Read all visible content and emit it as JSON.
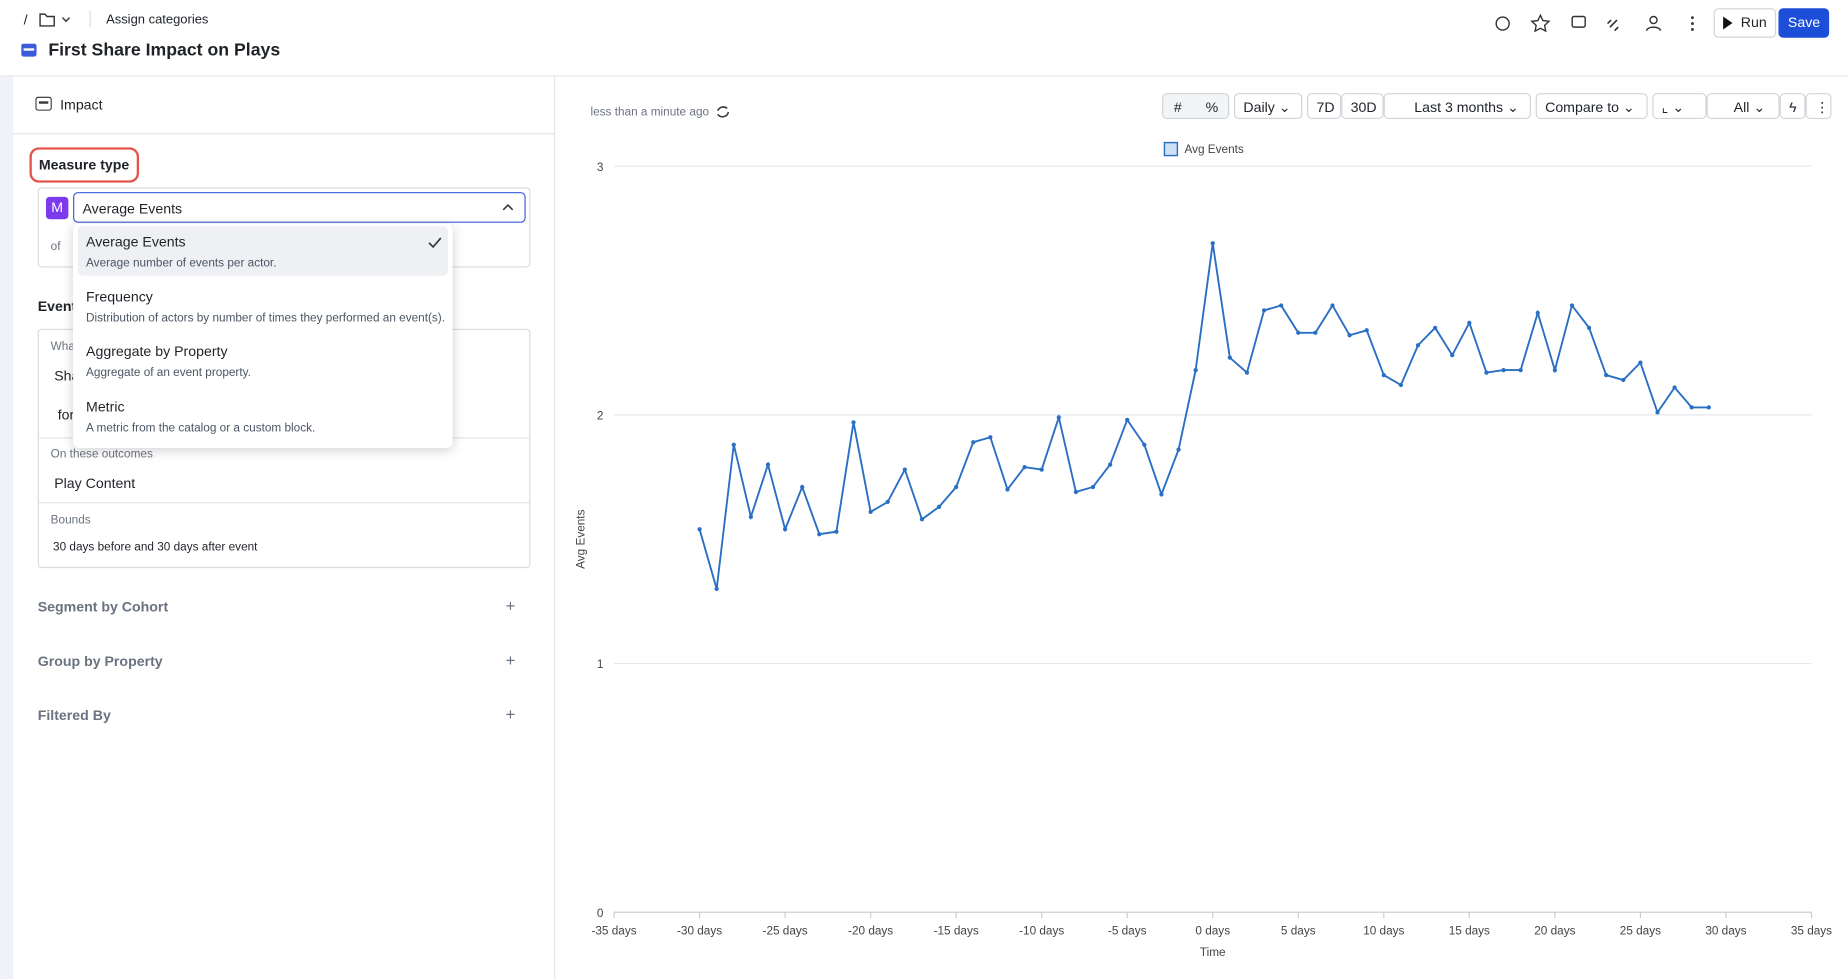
{
  "header": {
    "separator": "/",
    "breadcrumb": "Assign categories",
    "title": "First Share Impact on Plays",
    "run": "Run",
    "save": "Save"
  },
  "sidebar": {
    "section": "Impact",
    "measure_label": "Measure type",
    "badge": "M",
    "measure_value": "Average Events",
    "of": "of",
    "options": [
      {
        "title": "Average Events",
        "desc": "Average number of events per actor."
      },
      {
        "title": "Frequency",
        "desc": "Distribution of actors by number of times they performed an event(s)."
      },
      {
        "title": "Aggregate by Property",
        "desc": "Aggregate of an event property."
      },
      {
        "title": "Metric",
        "desc": "A metric from the catalog or a custom block."
      }
    ],
    "events_label": "Events",
    "what": "Wha",
    "share": "Sha",
    "for": "for",
    "outcomes_label": "On these outcomes",
    "outcome": "Play Content",
    "bounds_label": "Bounds",
    "bounds": "30 days before and 30 days after event",
    "segment": "Segment by Cohort",
    "group": "Group by Property",
    "filter": "Filtered By"
  },
  "toolbar": {
    "updated": "less than a minute ago",
    "interval": "Daily",
    "d7": "7D",
    "d30": "30D",
    "range": "Last 3 months",
    "compare": "Compare to",
    "view": "All"
  },
  "chart_data": {
    "type": "line",
    "xlabel": "Time",
    "ylabel": "Avg Events",
    "x": [
      -30,
      -29,
      -28,
      -27,
      -26,
      -25,
      -24,
      -23,
      -22,
      -21,
      -20,
      -19,
      -18,
      -17,
      -16,
      -15,
      -14,
      -13,
      -12,
      -11,
      -10,
      -9,
      -8,
      -7,
      -6,
      -5,
      -4,
      -3,
      -2,
      -1,
      0,
      1,
      2,
      3,
      4,
      5,
      6,
      7,
      8,
      9,
      10,
      11,
      12,
      13,
      14,
      15,
      16,
      17,
      18,
      19,
      20,
      21,
      22,
      23,
      24,
      25,
      26,
      27,
      28,
      29
    ],
    "series": [
      {
        "name": "Avg Events",
        "color": "#2a6fc4",
        "values": [
          1.54,
          1.3,
          1.88,
          1.59,
          1.8,
          1.54,
          1.71,
          1.52,
          1.53,
          1.97,
          1.61,
          1.65,
          1.78,
          1.58,
          1.63,
          1.71,
          1.89,
          1.91,
          1.7,
          1.79,
          1.78,
          1.99,
          1.69,
          1.71,
          1.8,
          1.98,
          1.88,
          1.68,
          1.86,
          2.18,
          2.69,
          2.23,
          2.17,
          2.42,
          2.44,
          2.33,
          2.33,
          2.44,
          2.32,
          2.34,
          2.16,
          2.12,
          2.28,
          2.35,
          2.24,
          2.37,
          2.17,
          2.18,
          2.18,
          2.41,
          2.18,
          2.44,
          2.35,
          2.16,
          2.14,
          2.21,
          2.01,
          2.11,
          2.03,
          2.03
        ]
      }
    ],
    "xlim": [
      -35,
      35
    ],
    "xticks": [
      {
        "value": -35,
        "label": "-35 days"
      },
      {
        "value": -30,
        "label": "-30 days"
      },
      {
        "value": -25,
        "label": "-25 days"
      },
      {
        "value": -20,
        "label": "-20 days"
      },
      {
        "value": -15,
        "label": "-15 days"
      },
      {
        "value": -10,
        "label": "-10 days"
      },
      {
        "value": -5,
        "label": "-5 days"
      },
      {
        "value": 0,
        "label": "0 days"
      },
      {
        "value": 5,
        "label": "5 days"
      },
      {
        "value": 10,
        "label": "10 days"
      },
      {
        "value": 15,
        "label": "15 days"
      },
      {
        "value": 20,
        "label": "20 days"
      },
      {
        "value": 25,
        "label": "25 days"
      },
      {
        "value": 30,
        "label": "30 days"
      },
      {
        "value": 35,
        "label": "35 days"
      }
    ],
    "ylim": [
      0,
      3
    ],
    "yticks": [
      0,
      1,
      2,
      3
    ],
    "grid": true,
    "legend": "top"
  }
}
